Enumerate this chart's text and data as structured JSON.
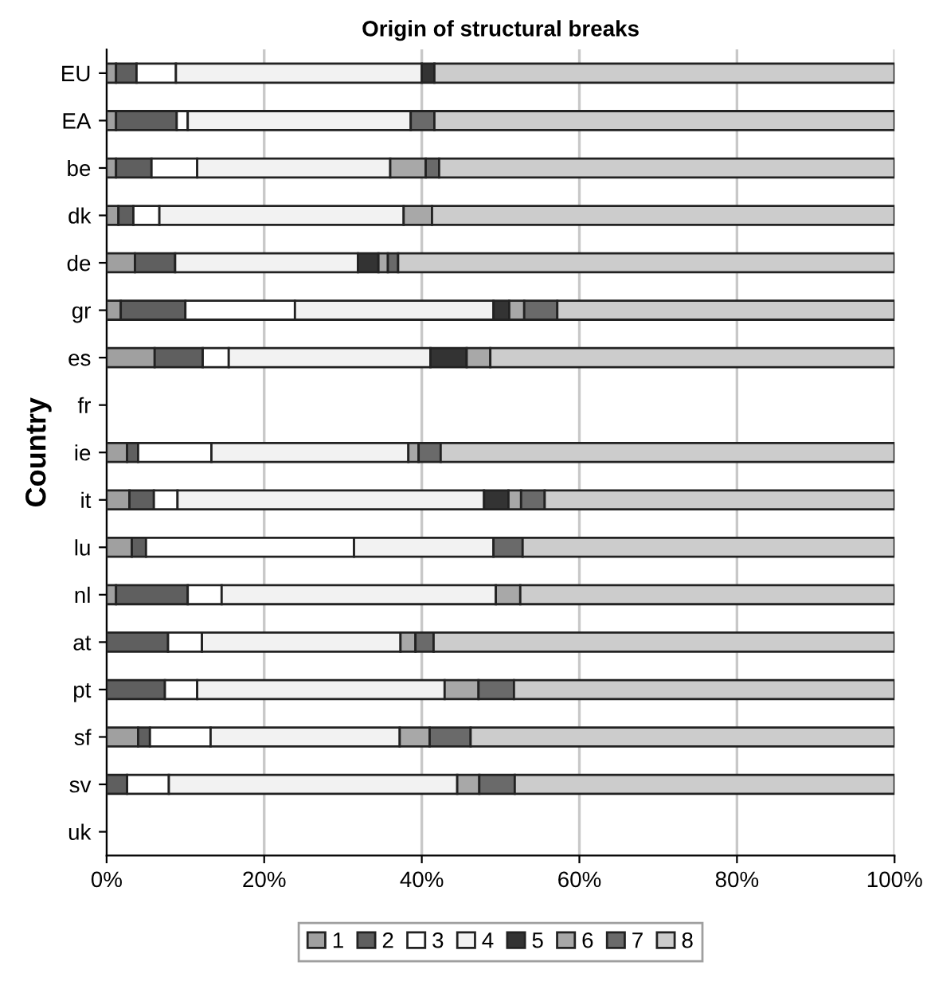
{
  "chart_data": {
    "type": "bar",
    "orientation": "horizontal",
    "stacked": true,
    "title": "Origin of structural breaks",
    "ylabel": "Country",
    "categories": [
      "EU",
      "EA",
      "be",
      "dk",
      "de",
      "gr",
      "es",
      "fr",
      "ie",
      "it",
      "lu",
      "nl",
      "at",
      "pt",
      "sf",
      "sv",
      "uk"
    ],
    "series": [
      {
        "name": "1",
        "color": "#a0a0a0",
        "values": [
          1.2,
          1.2,
          1.2,
          1.5,
          3.6,
          1.8,
          6.1,
          null,
          2.6,
          2.9,
          3.2,
          1.2,
          0,
          0,
          4.0,
          0,
          null
        ]
      },
      {
        "name": "2",
        "color": "#5f5f5f",
        "values": [
          2.6,
          7.7,
          4.5,
          1.9,
          5.1,
          8.2,
          6.1,
          null,
          1.4,
          3.1,
          1.8,
          9.1,
          7.8,
          7.4,
          1.5,
          2.6,
          null
        ]
      },
      {
        "name": "3",
        "color": "#ffffff",
        "values": [
          5.0,
          1.4,
          5.8,
          3.3,
          0,
          13.9,
          3.3,
          null,
          9.3,
          3.0,
          26.4,
          4.3,
          4.3,
          4.1,
          7.7,
          5.3,
          null
        ]
      },
      {
        "name": "4",
        "color": "#f2f2f2",
        "values": [
          31.2,
          28.3,
          24.5,
          31.0,
          23.2,
          25.2,
          25.6,
          null,
          25.0,
          38.9,
          17.7,
          34.8,
          25.2,
          31.4,
          24.0,
          36.6,
          null
        ]
      },
      {
        "name": "5",
        "color": "#333333",
        "values": [
          1.6,
          0,
          0,
          0,
          2.6,
          2.0,
          4.6,
          null,
          0,
          3.1,
          0,
          0,
          0,
          0,
          0,
          0,
          null
        ]
      },
      {
        "name": "6",
        "color": "#a8a8a8",
        "values": [
          0,
          0,
          4.5,
          3.6,
          1.2,
          1.9,
          3.0,
          null,
          1.3,
          1.6,
          0,
          3.1,
          1.9,
          4.3,
          3.8,
          2.8,
          null
        ]
      },
      {
        "name": "7",
        "color": "#6a6a6a",
        "values": [
          0,
          3.0,
          1.7,
          0,
          1.3,
          4.2,
          0,
          null,
          2.8,
          3.0,
          3.7,
          0,
          2.3,
          4.5,
          5.2,
          4.5,
          null
        ]
      },
      {
        "name": "8",
        "color": "#cccccc",
        "values": [
          58.4,
          58.4,
          57.8,
          58.7,
          63.0,
          42.8,
          51.3,
          null,
          57.6,
          44.4,
          47.2,
          47.5,
          58.5,
          48.3,
          53.8,
          48.2,
          null
        ]
      }
    ],
    "xlim": [
      0,
      100
    ],
    "xticks": [
      {
        "value": 0,
        "label": "0%"
      },
      {
        "value": 20,
        "label": "20%"
      },
      {
        "value": 40,
        "label": "40%"
      },
      {
        "value": 60,
        "label": "60%"
      },
      {
        "value": 80,
        "label": "80%"
      },
      {
        "value": 100,
        "label": "100%"
      }
    ],
    "grid": "x",
    "legend": "bottom"
  }
}
